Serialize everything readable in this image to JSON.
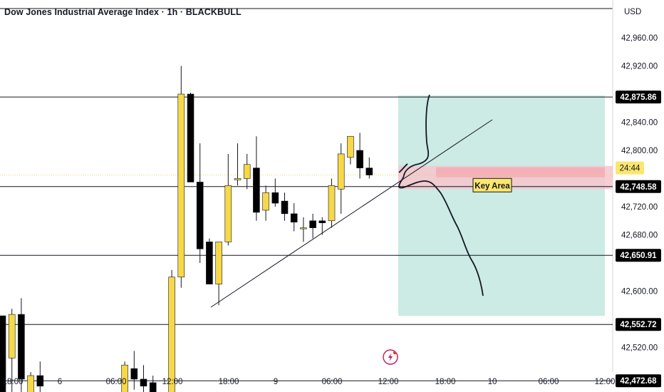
{
  "header": {
    "title": "Dow Jones Industrial Average Index · 1h · BLACKBULL",
    "currency": "USD"
  },
  "colors": {
    "bull": "#f6d848",
    "bear": "#000000",
    "profit_zone": "#b5e2d9",
    "key_zone": "#f7c6cc",
    "label_bg": "#000000",
    "countdown_bg": "#fbe66e"
  },
  "chart_data": {
    "type": "candlestick",
    "price_range": [
      42430,
      43000
    ],
    "price_ticks": [
      "42,960.00",
      "42,920.00",
      "42,840.00",
      "42,800.00",
      "42,720.00",
      "42,680.00",
      "42,600.00",
      "42,520.00"
    ],
    "price_tick_values": [
      42960,
      42920,
      42840,
      42800,
      42720,
      42680,
      42600,
      42520
    ],
    "time_ticks": [
      "18:00",
      "6",
      "06:00",
      "12:00",
      "18:00",
      "9",
      "06:00",
      "12:00",
      "18:00",
      "10",
      "06:00",
      "12:00"
    ],
    "levels": [
      {
        "label": "42,875.86",
        "value": 42875.86
      },
      {
        "label": "42,748.58",
        "value": 42748.58
      },
      {
        "label": "42,650.91",
        "value": 42650.91
      },
      {
        "label": "42,552.72",
        "value": 42552.72
      },
      {
        "label": "42,472.68",
        "value": 42472.68
      }
    ],
    "countdown": "24:44",
    "current_price": 42765,
    "annotation": "Key Area",
    "key_area": {
      "from": 42745,
      "to": 42778
    },
    "profit_zone": {
      "from": 42565,
      "to": 42878
    },
    "candles": [
      {
        "slot": 0,
        "o": 42565,
        "h": 42565,
        "l": 42430,
        "c": 42430
      },
      {
        "slot": 1,
        "o": 42505,
        "h": 42575,
        "l": 42430,
        "c": 42567
      },
      {
        "slot": 2,
        "o": 42567,
        "h": 42590,
        "l": 42430,
        "c": 42475
      },
      {
        "slot": 3,
        "o": 42450,
        "h": 42485,
        "l": 42430,
        "c": 42480
      },
      {
        "slot": 4,
        "o": 42480,
        "h": 42500,
        "l": 42430,
        "c": 42465
      },
      {
        "slot": 13,
        "o": 42455,
        "h": 42500,
        "l": 42440,
        "c": 42495
      },
      {
        "slot": 14,
        "o": 42490,
        "h": 42515,
        "l": 42460,
        "c": 42475
      },
      {
        "slot": 15,
        "o": 42475,
        "h": 42495,
        "l": 42440,
        "c": 42465
      },
      {
        "slot": 16,
        "o": 42470,
        "h": 42480,
        "l": 42430,
        "c": 42450
      },
      {
        "slot": 18,
        "o": 42430,
        "h": 42630,
        "l": 42430,
        "c": 42620
      },
      {
        "slot": 19,
        "o": 42620,
        "h": 42920,
        "l": 42605,
        "c": 42880
      },
      {
        "slot": 20,
        "o": 42880,
        "h": 42882,
        "l": 42755,
        "c": 42755
      },
      {
        "slot": 21,
        "o": 42755,
        "h": 42810,
        "l": 42640,
        "c": 42660
      },
      {
        "slot": 22,
        "o": 42670,
        "h": 42675,
        "l": 42610,
        "c": 42610
      },
      {
        "slot": 23,
        "o": 42610,
        "h": 42670,
        "l": 42580,
        "c": 42670
      },
      {
        "slot": 24,
        "o": 42670,
        "h": 42795,
        "l": 42665,
        "c": 42750
      },
      {
        "slot": 25,
        "o": 42758,
        "h": 42810,
        "l": 42750,
        "c": 42760
      },
      {
        "slot": 26,
        "o": 42760,
        "h": 42795,
        "l": 42745,
        "c": 42780
      },
      {
        "slot": 27,
        "o": 42775,
        "h": 42820,
        "l": 42700,
        "c": 42712
      },
      {
        "slot": 28,
        "o": 42715,
        "h": 42750,
        "l": 42700,
        "c": 42740
      },
      {
        "slot": 29,
        "o": 42740,
        "h": 42760,
        "l": 42720,
        "c": 42725
      },
      {
        "slot": 30,
        "o": 42728,
        "h": 42740,
        "l": 42700,
        "c": 42710
      },
      {
        "slot": 31,
        "o": 42710,
        "h": 42725,
        "l": 42685,
        "c": 42698
      },
      {
        "slot": 32,
        "o": 42690,
        "h": 42705,
        "l": 42670,
        "c": 42690
      },
      {
        "slot": 33,
        "o": 42700,
        "h": 42710,
        "l": 42675,
        "c": 42690
      },
      {
        "slot": 34,
        "o": 42700,
        "h": 42705,
        "l": 42680,
        "c": 42697
      },
      {
        "slot": 35,
        "o": 42700,
        "h": 42760,
        "l": 42690,
        "c": 42750
      },
      {
        "slot": 36,
        "o": 42745,
        "h": 42810,
        "l": 42710,
        "c": 42795
      },
      {
        "slot": 37,
        "o": 42790,
        "h": 42820,
        "l": 42780,
        "c": 42820
      },
      {
        "slot": 38,
        "o": 42800,
        "h": 42825,
        "l": 42760,
        "c": 42775
      },
      {
        "slot": 39,
        "o": 42775,
        "h": 42790,
        "l": 42760,
        "c": 42765
      }
    ]
  }
}
